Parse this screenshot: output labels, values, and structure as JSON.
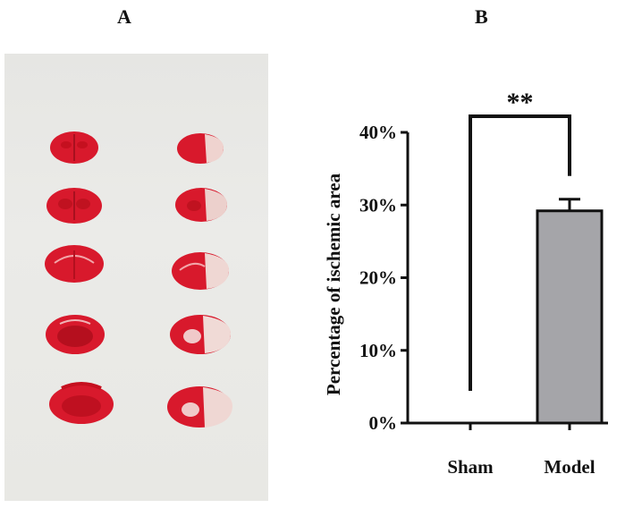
{
  "panels": {
    "a_label": "A",
    "b_label": "B"
  },
  "photo": {
    "sham_slices": 5,
    "model_slices": 5,
    "tissue_color": "#d8192c",
    "infarct_color": "#efd3cf",
    "background_color": "#e8e8e4"
  },
  "chart_data": {
    "type": "bar",
    "categories": [
      "Sham",
      "Model"
    ],
    "values": [
      0,
      29.2
    ],
    "errors": [
      0,
      1.6
    ],
    "ylabel": "Percentage of ischemic area",
    "ylim": [
      0,
      40
    ],
    "yticks": [
      0,
      10,
      20,
      30,
      40
    ],
    "ytick_labels": [
      "0%",
      "10%",
      "20%",
      "30%",
      "40%"
    ],
    "bar_color": "#a5a5a9",
    "significance": {
      "label": "**",
      "between": [
        "Sham",
        "Model"
      ]
    },
    "grid": false,
    "legend": "none"
  }
}
